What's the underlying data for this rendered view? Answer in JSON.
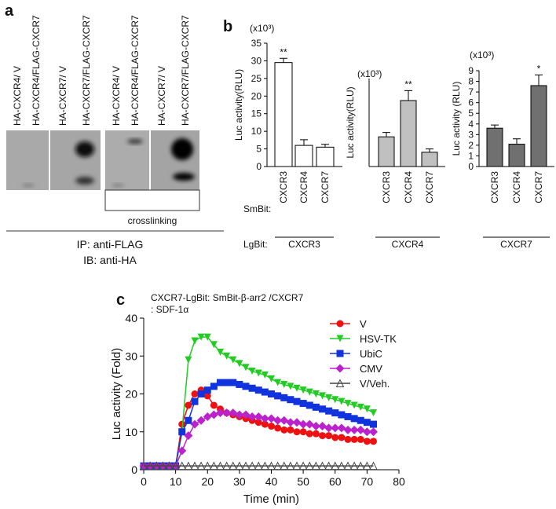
{
  "panel_labels": [
    "a",
    "b",
    "c"
  ],
  "blot": {
    "lanes": [
      "HA-CXCR4/ V",
      "HA-CXCR4/FLAG-CXCR7",
      "HA-CXCR7/ V",
      "HA-CXCR7/FLAG-CXCR7",
      "HA-CXCR4/ V",
      "HA-CXCR4/FLAG-CXCR7",
      "HA-CXCR7/ V",
      "HA-CXCR7/FLAG-CXCR7"
    ],
    "crosslinking": "crosslinking",
    "ip": "IP:  anti-FLAG",
    "ib": "IB:  anti-HA"
  },
  "row_labels": {
    "smbit": "SmBit:",
    "lgbit": "LgBit:"
  },
  "chart_data": [
    {
      "type": "bar",
      "y_unit": "(x10³)",
      "y_label": "Luc activity(RLU)",
      "group_label": "CXCR3",
      "categories": [
        "CXCR3",
        "CXCR4",
        "CXCR7"
      ],
      "values": [
        29.5,
        6,
        5.5
      ],
      "errors": [
        1.2,
        1.6,
        0.8
      ],
      "annotations": [
        "**",
        null,
        null
      ],
      "color": "#ffffff",
      "ylim": [
        0,
        35
      ],
      "yticks": [
        0,
        5,
        10,
        15,
        20,
        25,
        30,
        35
      ]
    },
    {
      "type": "bar",
      "y_unit": "(x10³)",
      "y_label": "Luc activity(RLU)",
      "group_label": "CXCR4",
      "categories": [
        "CXCR3",
        "CXCR4",
        "CXCR7"
      ],
      "values": [
        2.7,
        6,
        1.3
      ],
      "errors": [
        0.4,
        0.9,
        0.3
      ],
      "annotations": [
        null,
        "**",
        null
      ],
      "color": "#c0c0c0",
      "ylim": [
        0,
        8
      ]
    },
    {
      "type": "bar",
      "y_unit": "(x10³)",
      "y_label": "Luc activity (RLU)",
      "group_label": "CXCR7",
      "categories": [
        "CXCR3",
        "CXCR4",
        "CXCR7"
      ],
      "values": [
        3.6,
        2.1,
        7.6
      ],
      "errors": [
        0.3,
        0.5,
        1.0
      ],
      "annotations": [
        null,
        null,
        "*"
      ],
      "color": "#707070",
      "ylim": [
        0,
        9
      ],
      "yticks": [
        0,
        1,
        2,
        3,
        4,
        5,
        6,
        7,
        8,
        9
      ]
    },
    {
      "type": "line",
      "subtitle": "CXCR7-LgBit:  SmBit-β-arr2 /CXCR7",
      "subtitle2": ": SDF-1α",
      "x_label": "Time (min)",
      "y_label": "Luc activity (Fold)",
      "xlim": [
        0,
        80
      ],
      "xticks": [
        0,
        10,
        20,
        30,
        40,
        50,
        60,
        70,
        80
      ],
      "ylim": [
        0,
        40
      ],
      "yticks": [
        0,
        10,
        20,
        30,
        40
      ],
      "x": [
        0,
        2,
        4,
        6,
        8,
        10,
        12,
        14,
        16,
        18,
        20,
        22,
        24,
        26,
        28,
        30,
        32,
        34,
        36,
        38,
        40,
        42,
        44,
        46,
        48,
        50,
        52,
        54,
        56,
        58,
        60,
        62,
        64,
        66,
        68,
        70,
        72
      ],
      "series": [
        {
          "name": "V",
          "color": "#ee1111",
          "marker": "circle",
          "values": [
            1,
            1,
            1,
            1,
            1,
            1,
            12,
            17,
            20,
            21,
            19.5,
            17,
            16,
            15,
            14.5,
            14,
            13.5,
            13,
            12.5,
            12,
            11.5,
            11,
            10.5,
            10.5,
            10,
            10,
            9.5,
            9.5,
            9,
            9,
            8.5,
            8.5,
            8,
            8,
            8,
            7.5,
            7.5
          ]
        },
        {
          "name": "HSV-TK",
          "color": "#22cc22",
          "marker": "triangle-down",
          "values": [
            1,
            1,
            1,
            1,
            1,
            1,
            10,
            29,
            34,
            35,
            35,
            33,
            31,
            30,
            29,
            28,
            27,
            26,
            25.5,
            25,
            24,
            23,
            22.5,
            22,
            21.5,
            21,
            20.5,
            20,
            19.5,
            19,
            18.5,
            18,
            17.5,
            17,
            16.5,
            16,
            15
          ]
        },
        {
          "name": "UbiC",
          "color": "#1133dd",
          "marker": "square",
          "values": [
            1,
            1,
            1,
            1,
            1,
            1,
            10,
            13,
            18,
            20,
            21,
            22,
            23,
            23,
            23,
            22.5,
            22,
            21.5,
            21,
            20.5,
            20,
            19.5,
            19,
            18.5,
            18,
            17.5,
            17,
            16.5,
            16,
            15.5,
            15,
            14.5,
            14,
            13.5,
            13,
            12.5,
            12
          ]
        },
        {
          "name": "CMV",
          "color": "#bb22cc",
          "marker": "diamond",
          "values": [
            1,
            1,
            1,
            1,
            1,
            1,
            5,
            9,
            12,
            13,
            14,
            14.5,
            15,
            15,
            15,
            14.5,
            14.5,
            14,
            14,
            13.5,
            13.5,
            13,
            13,
            12.5,
            12.5,
            12,
            12,
            11.5,
            11.5,
            11,
            11,
            11,
            10.5,
            10.5,
            10.5,
            10,
            10
          ]
        },
        {
          "name": "V/Veh.",
          "color": "#444444",
          "marker": "open-triangle",
          "values": [
            1,
            1,
            1,
            1,
            1,
            1,
            1,
            1,
            1,
            1,
            1,
            1,
            1,
            1,
            1,
            1,
            1,
            1,
            1,
            1,
            1,
            1,
            1,
            1,
            1,
            1,
            1,
            1,
            1,
            1,
            1,
            1,
            1,
            1,
            1,
            1,
            1
          ]
        }
      ]
    }
  ]
}
